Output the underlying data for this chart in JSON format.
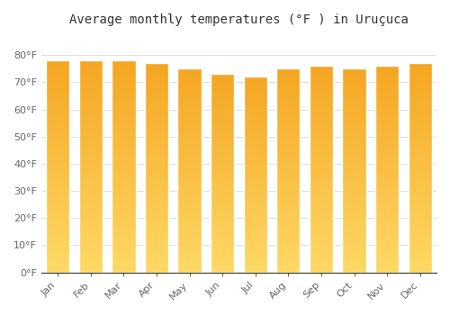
{
  "months": [
    "Jan",
    "Feb",
    "Mar",
    "Apr",
    "May",
    "Jun",
    "Jul",
    "Aug",
    "Sep",
    "Oct",
    "Nov",
    "Dec"
  ],
  "values": [
    78,
    78,
    78,
    77,
    75,
    73,
    72,
    75,
    76,
    75,
    76,
    77
  ],
  "bar_color_top": "#F5A623",
  "bar_color_bottom": "#FFD966",
  "title": "Average monthly temperatures (°F ) in Uruçuca",
  "ylim": [
    0,
    88
  ],
  "yticks": [
    0,
    10,
    20,
    30,
    40,
    50,
    60,
    70,
    80
  ],
  "ytick_labels": [
    "0°F",
    "10°F",
    "20°F",
    "30°F",
    "40°F",
    "50°F",
    "60°F",
    "70°F",
    "80°F"
  ],
  "background_color": "#FFFFFF",
  "grid_color": "#DDDDDD",
  "title_fontsize": 10,
  "tick_fontsize": 8,
  "bar_width": 0.72
}
